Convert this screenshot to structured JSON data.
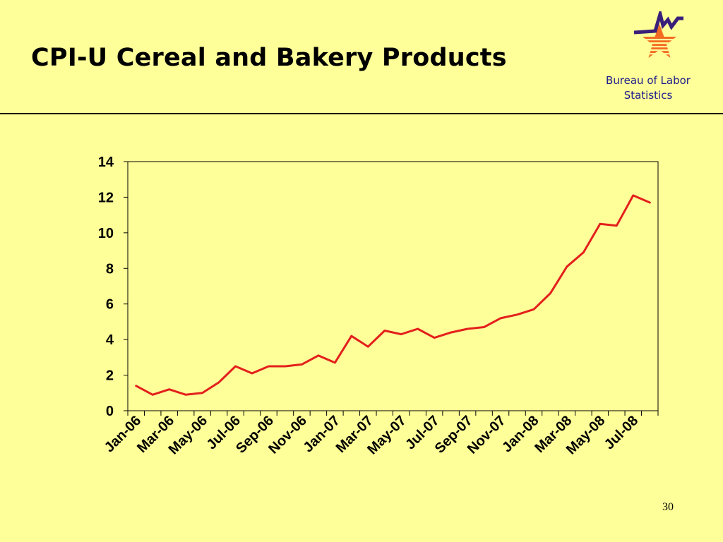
{
  "slide": {
    "title": "CPI-U Cereal and Bakery Products",
    "logo_line1": "Bureau of Labor",
    "logo_line2": "Statistics",
    "page_number": "30"
  },
  "colors": {
    "background": "#FFFF99",
    "line": "#E3201C",
    "logo_star": "#F26B21",
    "logo_stripes": "#FFFF99",
    "logo_navy": "#3A1F7A",
    "logo_text": "#1A1A8C"
  },
  "chart_data": {
    "type": "line",
    "title": "",
    "xlabel": "",
    "ylabel": "",
    "ylim": [
      0,
      14
    ],
    "yticks": [
      0,
      2,
      4,
      6,
      8,
      10,
      12,
      14
    ],
    "grid": false,
    "legend": "none",
    "x": [
      "Jan-06",
      "Feb-06",
      "Mar-06",
      "Apr-06",
      "May-06",
      "Jun-06",
      "Jul-06",
      "Aug-06",
      "Sep-06",
      "Oct-06",
      "Nov-06",
      "Dec-06",
      "Jan-07",
      "Feb-07",
      "Mar-07",
      "Apr-07",
      "May-07",
      "Jun-07",
      "Jul-07",
      "Aug-07",
      "Sep-07",
      "Oct-07",
      "Nov-07",
      "Dec-07",
      "Jan-08",
      "Feb-08",
      "Mar-08",
      "Apr-08",
      "May-08",
      "Jun-08",
      "Jul-08",
      "Aug-08"
    ],
    "x_tick_labels": [
      "Jan-06",
      "Mar-06",
      "May-06",
      "Jul-06",
      "Sep-06",
      "Nov-06",
      "Jan-07",
      "Mar-07",
      "May-07",
      "Jul-07",
      "Sep-07",
      "Nov-07",
      "Jan-08",
      "Mar-08",
      "May-08",
      "Jul-08"
    ],
    "series": [
      {
        "values": [
          1.4,
          0.9,
          1.2,
          0.9,
          1.0,
          1.6,
          2.5,
          2.1,
          2.5,
          2.5,
          2.6,
          3.1,
          2.7,
          4.2,
          3.6,
          4.5,
          4.3,
          4.6,
          4.1,
          4.4,
          4.6,
          4.7,
          5.2,
          5.4,
          5.7,
          6.6,
          8.1,
          8.9,
          10.5,
          10.4,
          12.1,
          11.7
        ]
      }
    ]
  }
}
